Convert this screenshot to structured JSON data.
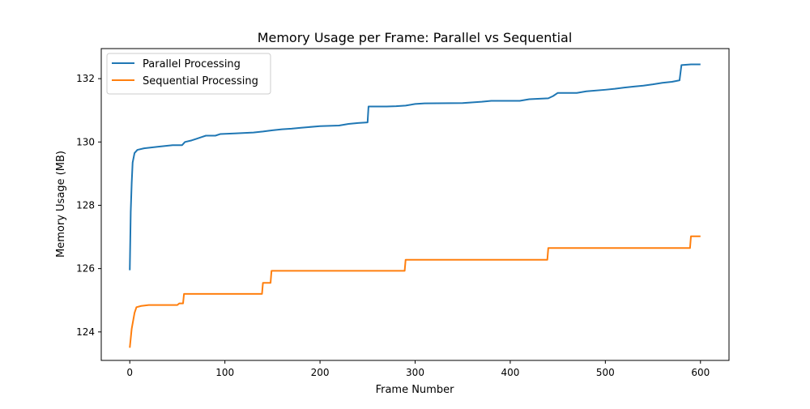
{
  "chart_data": {
    "type": "line",
    "title": "Memory Usage per Frame: Parallel vs Sequential",
    "xlabel": "Frame Number",
    "ylabel": "Memory Usage (MB)",
    "xlim": [
      -30,
      630
    ],
    "ylim": [
      123.1,
      132.95
    ],
    "xticks": [
      0,
      100,
      200,
      300,
      400,
      500,
      600
    ],
    "yticks": [
      124,
      126,
      128,
      130,
      132
    ],
    "grid": false,
    "legend_position": "top-left",
    "series": [
      {
        "name": "Parallel Processing",
        "color": "#1f77b4",
        "x": [
          0,
          1,
          2,
          3,
          5,
          8,
          15,
          30,
          45,
          55,
          58,
          65,
          70,
          75,
          80,
          90,
          95,
          110,
          130,
          140,
          150,
          160,
          170,
          180,
          200,
          220,
          230,
          240,
          250,
          251,
          270,
          280,
          290,
          300,
          310,
          350,
          370,
          380,
          410,
          420,
          440,
          445,
          450,
          470,
          480,
          500,
          510,
          520,
          530,
          540,
          550,
          560,
          570,
          575,
          578,
          580,
          590,
          600
        ],
        "y": [
          125.95,
          127.8,
          128.7,
          129.35,
          129.65,
          129.75,
          129.8,
          129.85,
          129.9,
          129.9,
          130.0,
          130.05,
          130.1,
          130.15,
          130.2,
          130.2,
          130.25,
          130.27,
          130.3,
          130.33,
          130.37,
          130.4,
          130.42,
          130.45,
          130.5,
          130.52,
          130.57,
          130.6,
          130.62,
          131.12,
          131.12,
          131.13,
          131.15,
          131.2,
          131.22,
          131.23,
          131.27,
          131.3,
          131.3,
          131.35,
          131.38,
          131.45,
          131.55,
          131.55,
          131.6,
          131.65,
          131.68,
          131.72,
          131.75,
          131.78,
          131.82,
          131.87,
          131.9,
          131.93,
          131.95,
          132.43,
          132.45,
          132.45
        ]
      },
      {
        "name": "Sequential Processing",
        "color": "#ff7f0e",
        "x": [
          0,
          2,
          5,
          7,
          12,
          20,
          30,
          50,
          52,
          56,
          57,
          139,
          140,
          148,
          149,
          289,
          290,
          439,
          440,
          589,
          590,
          600
        ],
        "y": [
          123.5,
          124.1,
          124.6,
          124.78,
          124.82,
          124.85,
          124.85,
          124.85,
          124.9,
          124.9,
          125.2,
          125.2,
          125.55,
          125.55,
          125.93,
          125.93,
          126.28,
          126.28,
          126.65,
          126.65,
          127.02,
          127.02
        ]
      }
    ]
  }
}
